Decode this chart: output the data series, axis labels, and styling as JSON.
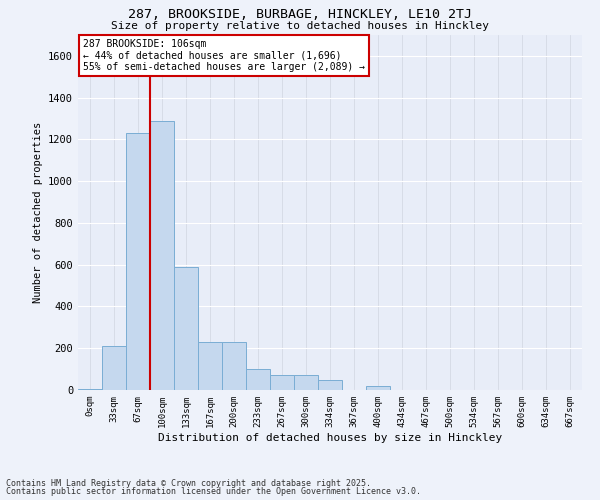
{
  "title_line1": "287, BROOKSIDE, BURBAGE, HINCKLEY, LE10 2TJ",
  "title_line2": "Size of property relative to detached houses in Hinckley",
  "xlabel": "Distribution of detached houses by size in Hinckley",
  "ylabel": "Number of detached properties",
  "bar_color": "#c5d8ee",
  "bar_edge_color": "#7aadd4",
  "background_color": "#e8edf8",
  "grid_color": "#d8dde8",
  "categories": [
    "0sqm",
    "33sqm",
    "67sqm",
    "100sqm",
    "133sqm",
    "167sqm",
    "200sqm",
    "233sqm",
    "267sqm",
    "300sqm",
    "334sqm",
    "367sqm",
    "400sqm",
    "434sqm",
    "467sqm",
    "500sqm",
    "534sqm",
    "567sqm",
    "600sqm",
    "634sqm",
    "667sqm"
  ],
  "values": [
    5,
    210,
    1230,
    1290,
    590,
    230,
    230,
    100,
    70,
    70,
    50,
    0,
    20,
    0,
    0,
    0,
    0,
    0,
    0,
    0,
    0
  ],
  "red_line_x": 2.5,
  "annotation_text": "287 BROOKSIDE: 106sqm\n← 44% of detached houses are smaller (1,696)\n55% of semi-detached houses are larger (2,089) →",
  "annotation_box_color": "#ffffff",
  "annotation_border_color": "#cc0000",
  "ylim": [
    0,
    1700
  ],
  "yticks": [
    0,
    200,
    400,
    600,
    800,
    1000,
    1200,
    1400,
    1600
  ],
  "footer_line1": "Contains HM Land Registry data © Crown copyright and database right 2025.",
  "footer_line2": "Contains public sector information licensed under the Open Government Licence v3.0.",
  "fig_bg_color": "#eef2fa"
}
